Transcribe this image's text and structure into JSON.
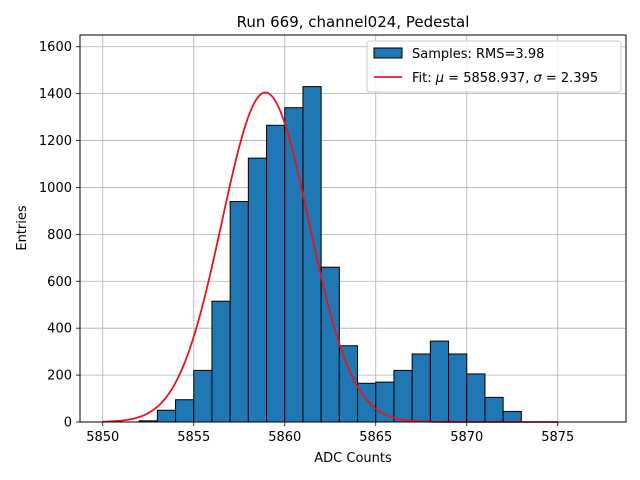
{
  "chart_data": {
    "type": "bar",
    "title": "Run 669, channel024, Pedestal",
    "xlabel": "ADC Counts",
    "ylabel": "Entries",
    "xlim": [
      5848.75,
      5878.75
    ],
    "ylim": [
      0,
      1650
    ],
    "xticks": [
      5850,
      5855,
      5860,
      5865,
      5870,
      5875
    ],
    "yticks": [
      0,
      200,
      400,
      600,
      800,
      1000,
      1200,
      1400,
      1600
    ],
    "grid": true,
    "legend_position": "top-right",
    "histogram": {
      "name": "Samples: RMS=3.98",
      "color": "#1f77b4",
      "edge_color": "#000000",
      "bin_edges": [
        5852,
        5853,
        5854,
        5855,
        5856,
        5857,
        5858,
        5859,
        5860,
        5861,
        5862,
        5863,
        5864,
        5865,
        5866,
        5867,
        5868,
        5869,
        5870,
        5871,
        5872,
        5873
      ],
      "counts": [
        5,
        50,
        95,
        220,
        515,
        940,
        1125,
        1265,
        1340,
        1430,
        660,
        325,
        165,
        170,
        220,
        290,
        345,
        290,
        205,
        105,
        45,
        25
      ]
    },
    "fit": {
      "name": "Fit: μ = 5858.937, σ = 2.395",
      "label_prefix": "Fit: ",
      "mu_symbol": "μ",
      "mu_value": " = 5858.937, ",
      "sigma_symbol": "σ",
      "sigma_value": " = 2.395",
      "color": "#e8141e",
      "mu": 5858.937,
      "sigma": 2.395,
      "amplitude": 1405,
      "x_range": [
        5850,
        5875
      ]
    }
  }
}
